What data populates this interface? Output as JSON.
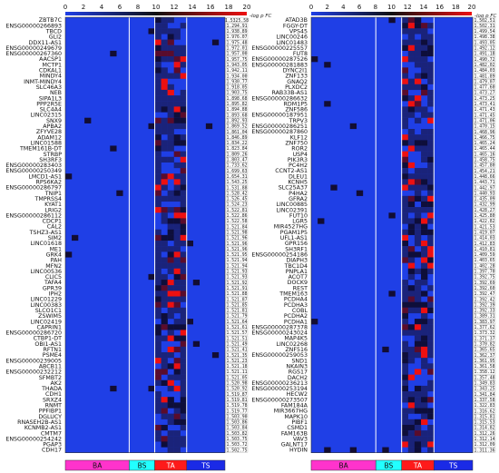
{
  "colors": {
    "low": "#1f3fe6",
    "mid": "#101010",
    "high": "#ee1010",
    "BA": "#ff33cc",
    "BS": "#22ffff",
    "TA": "#ff1a1a",
    "TS": "#1a2ae6"
  },
  "chart_data": {
    "type": "heatmap",
    "colorbar": {
      "title": "-log p FC",
      "ticks": [
        "0",
        "2",
        "4",
        "6",
        "8",
        "10",
        "12",
        "14",
        "16",
        "18",
        "20"
      ],
      "range": [
        0,
        20
      ]
    },
    "groups": [
      {
        "name": "BA",
        "columns": 10
      },
      {
        "name": "BS",
        "columns": 4
      },
      {
        "name": "TA",
        "columns": 5
      },
      {
        "name": "TS",
        "columns": 6
      }
    ],
    "panels": [
      {
        "genes": [
          "ZBTB7C",
          "ENSG00000266893",
          "TBCD",
          "GLI2",
          "DDX11-AS1",
          "ENSG00000249679",
          "ENSG00000267360",
          "AACSP1",
          "MCTP1",
          "CDKAL1",
          "MINDY4",
          "INMT-MINDY4",
          "SLC46A3",
          "NEB",
          "SIPA1L3",
          "PPP2R5E",
          "SLC4A4",
          "LINC02315",
          "SNX9",
          "APBA2",
          "ZFYVE28",
          "ADAM12",
          "LINC01588",
          "TMEM161B-DT",
          "STRBP",
          "SH3RF3",
          "ENSG00000283403",
          "ENSG00000250349",
          "LMCD1-AS1",
          "RPS6KA2",
          "ENSG00000286797",
          "TNIP1",
          "TMPRSS4",
          "KYAT1",
          "LRIG2",
          "ENSG00000286112",
          "CDCP1",
          "CAL2",
          "TSHZ3-AS1",
          "SIM2",
          "LINC01618",
          "ME1",
          "GRK4",
          "PAH",
          "MFN2",
          "LINC00536",
          "CLIC5",
          "TAFA4",
          "GPR39",
          "IPH2",
          "LINC01229",
          "LINC00383",
          "SLCO1C1",
          "ZSWIM5",
          "LINC02419",
          "CAPRIN1",
          "ENSG00000286720",
          "CTBP1-DT",
          "OBI1-AS1",
          "RFTN1",
          "PSME4",
          "ENSG00000239005",
          "ABCB11",
          "ENSG00000232212",
          "SFMBT2",
          "AK2",
          "THADA",
          "CDH1",
          "SRXZ4",
          "RNMT",
          "PPFIBP1",
          "DGLUCY",
          "RNASEH2B-AS1",
          "KCNMB2-AS1",
          "CMTM7",
          "ENSG00000254242",
          "PGAP3",
          "CDH17"
        ],
        "fold_changes": [
          "1.5325.58",
          "1.294.91",
          "1.938.89",
          "1.976.07",
          "1.975.48",
          "1.972.01",
          "1.957.00",
          "1.957.75",
          "1.943.05",
          "1.942.11",
          "1.934.00",
          "1.930.77",
          "1.918.05",
          "1.903.75",
          "1.898.68",
          "1.895.82",
          "1.894.88",
          "1.893.68",
          "1.892.93",
          "1.869.52",
          "1.861.04",
          "1.846.89",
          "1.834.22",
          "1.823.84",
          "1.809.26",
          "1.803.47",
          "1.733.62",
          "1.699.63",
          "1.654.31",
          "1.543.25",
          "1.531.88",
          "1.528.42",
          "1.526.45",
          "1.524.23",
          "1.522.81",
          "1.522.86",
          "1.522.58",
          "1.521.84",
          "1.521.98",
          "1.521.96",
          "1.521.96",
          "1.521.96",
          "1.521.95",
          "1.521.94",
          "1.521.94",
          "1.521.93",
          "1.521.93",
          "1.521.92",
          "1.521.91",
          "1.521.88",
          "1.521.87",
          "1.521.85",
          "1.521.81",
          "1.521.79",
          "1.521.64",
          "1.521.61",
          "1.521.57",
          "1.521.51",
          "1.521.49",
          "1.521.41",
          "1.521.35",
          "1.521.23",
          "1.521.18",
          "1.521.11",
          "1.521.05",
          "1.520.98",
          "1.520.92",
          "1.519.87",
          "1.519.81",
          "1.519.78",
          "1.519.77",
          "1.503.90",
          "1.503.86",
          "1.503.84",
          "1.503.82",
          "1.503.75",
          "1.503.72",
          "1.502.75"
        ]
      },
      {
        "genes": [
          "ATAD3B",
          "FGGY-DT",
          "VPS45",
          "LINC00246",
          "LINC01483",
          "ENSG00000225557",
          "FUT8",
          "ENSG00000287526",
          "ENSG00000281883",
          "DYNC2I1",
          "ZNF133",
          "GNAQ2",
          "PLXDC2",
          "RAB33B-AS1",
          "ENSG00000286632",
          "RDM1P5",
          "ZNF586",
          "ENSG00000187951",
          "TRPV3",
          "ENSG00000286251",
          "ENSG00000287860",
          "KLF12",
          "ZNF750",
          "ROR2",
          "USP4",
          "PIK3R3",
          "PC4H2",
          "CCNT2-AS1",
          "DLEU1",
          "KCNH5",
          "SLC25A37",
          "P4HA2",
          "GFRA2",
          "LINC00885",
          "LINC02391",
          "FUT10",
          "LGR5",
          "MIR4527HG",
          "PGAM1P5",
          "UFL1-AS1",
          "GPR156",
          "SH3RF1",
          "ENSG00000254186",
          "DIAPH3",
          "TBC1D4",
          "PNPLA1",
          "ACOT7",
          "DOCK9",
          "REST",
          "TMEM163",
          "PCDHA4",
          "PCDHA3",
          "COBL",
          "PCDHA2",
          "PCDHA1",
          "ENSG00000287378",
          "ENSG00000243024",
          "MAP4K5",
          "LINC02268",
          "ZNF516",
          "ENSG00000259053",
          "SND1",
          "NKAIN3",
          "RGS17",
          "DACH2",
          "ENSG00000236213",
          "ENSG00000253194",
          "HECW2",
          "ENSG00000273507",
          "FAM184A",
          "MIR3667HG",
          "MAPK10",
          "PIBF1",
          "CSMD1",
          "FAM163B",
          "VAV3",
          "GALNT17",
          "HYDIN"
        ],
        "fold_changes": [
          "1.502.51",
          "1.502.31",
          "1.499.54",
          "1.498.38",
          "1.493.05",
          "1.492.12",
          "1.491.18",
          "1.490.72",
          "1.482.02",
          "1.484.03",
          "1.481.89",
          "1.479.07",
          "1.477.60",
          "1.473.27",
          "1.473.25",
          "1.473.41",
          "1.471.43",
          "1.471.45",
          "1.471.06",
          "1.470.15",
          "1.468.96",
          "1.466.75",
          "1.465.24",
          "1.465.44",
          "1.465.16",
          "1.458.75",
          "1.457.80",
          "1.454.21",
          "1.448.66",
          "1.443.71",
          "1.442.97",
          "1.440.93",
          "1.435.09",
          "1.432.99",
          "1.428.27",
          "1.425.80",
          "1.422.82",
          "1.421.53",
          "1.419.07",
          "1.414.03",
          "1.412.83",
          "1.410.81",
          "1.409.59",
          "1.403.65",
          "1.402.28",
          "1.397.70",
          "1.392.75",
          "1.392.69",
          "1.392.60",
          "1.392.47",
          "1.392.42",
          "1.392.39",
          "1.392.33",
          "1.389.31",
          "1.383.97",
          "1.377.62",
          "1.373.32",
          "1.371.37",
          "1.370.82",
          "1.365.65",
          "1.362.37",
          "1.361.95",
          "1.361.58",
          "1.358.12",
          "1.357.48",
          "1.349.83",
          "1.343.25",
          "1.341.84",
          "1.337.58",
          "1.322.83",
          "1.316.62",
          "1.315.81",
          "1.315.53",
          "1.314.82",
          "1.312.26",
          "1.312.14",
          "1.312.09",
          "1.311.36"
        ]
      }
    ]
  }
}
